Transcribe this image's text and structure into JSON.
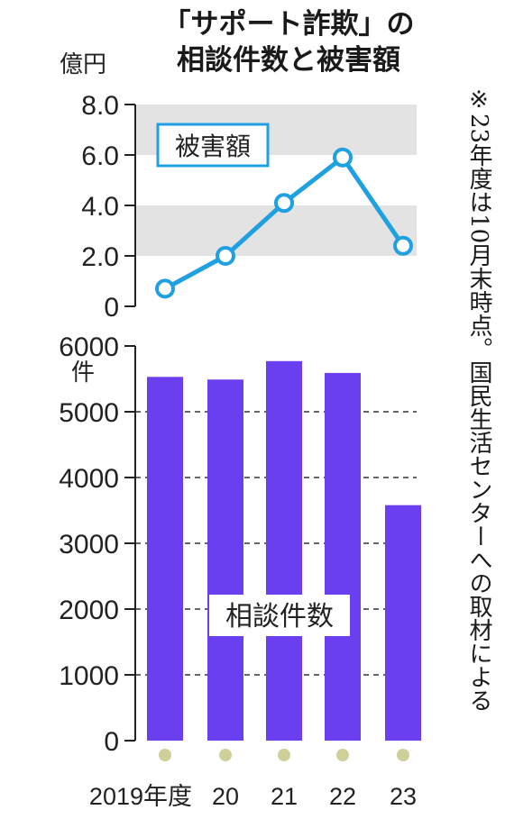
{
  "title_line1": "「サポート詐欺」の",
  "title_line2": "相談件数と被害額",
  "note": "※23年度は10月末時点。国民生活センターへの取材による",
  "chart_data": [
    {
      "type": "line",
      "series": [
        {
          "name": "被害額",
          "values": [
            0.7,
            2.0,
            4.1,
            5.9,
            2.4
          ]
        }
      ],
      "categories": [
        "2019年度",
        "20",
        "21",
        "22",
        "23"
      ],
      "ylabel": "億円",
      "ylim": [
        0,
        8
      ],
      "y_ticks": [
        "0",
        "2.0",
        "4.0",
        "6.0",
        "8.0"
      ],
      "y_tick_values": [
        0,
        2,
        4,
        6,
        8
      ],
      "legend": "top-left",
      "grid": "alternating shaded bands",
      "colors": {
        "line": "#1fa0e0",
        "band": "#e3e3e3"
      }
    },
    {
      "type": "bar",
      "series": [
        {
          "name": "相談件数",
          "values": [
            5530,
            5490,
            5770,
            5590,
            3580
          ]
        }
      ],
      "categories": [
        "2019年度",
        "20",
        "21",
        "22",
        "23"
      ],
      "ylabel": "件",
      "ylim": [
        0,
        6000
      ],
      "y_ticks": [
        "0",
        "1000",
        "2000",
        "3000",
        "4000",
        "5000",
        "6000"
      ],
      "y_tick_values": [
        0,
        1000,
        2000,
        3000,
        4000,
        5000,
        6000
      ],
      "grid": "dashed horizontal lines",
      "colors": {
        "bar": "#6a3ff0",
        "dot": "#cfcf9a"
      }
    }
  ]
}
